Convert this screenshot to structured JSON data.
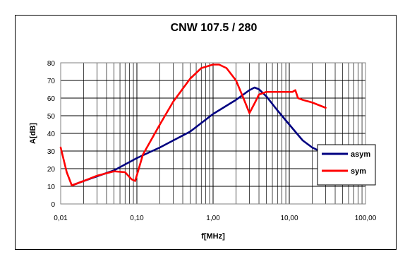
{
  "chart_data": {
    "type": "line",
    "title": "CNW 107.5 / 280",
    "xlabel": "f[MHz]",
    "ylabel": "A[dB]",
    "xscale": "log",
    "xlim": [
      0.01,
      100
    ],
    "ylim": [
      0,
      80
    ],
    "xticks": [
      "0,01",
      "0,10",
      "1,00",
      "10,00",
      "100,00"
    ],
    "yticks": [
      "0",
      "10",
      "20",
      "30",
      "40",
      "50",
      "60",
      "70",
      "80"
    ],
    "grid": true,
    "legend_position": "right",
    "series": [
      {
        "name": "asym",
        "color": "#000080",
        "x": [
          0.014,
          0.02,
          0.05,
          0.1,
          0.2,
          0.5,
          1.0,
          2.0,
          3.0,
          3.5,
          4.0,
          5.0,
          7.0,
          10.0,
          15.0,
          20.0,
          25.0
        ],
        "y": [
          10.5,
          13,
          19,
          26,
          32,
          41,
          51,
          59,
          64.5,
          66,
          65,
          61,
          53,
          45,
          36,
          32,
          30
        ]
      },
      {
        "name": "sym",
        "color": "#ff0000",
        "x": [
          0.01,
          0.012,
          0.014,
          0.02,
          0.03,
          0.05,
          0.07,
          0.085,
          0.095,
          0.12,
          0.2,
          0.3,
          0.5,
          0.7,
          1.0,
          1.2,
          1.5,
          2.0,
          2.5,
          3.0,
          3.5,
          4.0,
          5.0,
          7.0,
          10.0,
          11.0,
          12.0,
          13.0,
          15.0,
          20.0,
          30.0
        ],
        "y": [
          32,
          18,
          10.5,
          13,
          16,
          18.5,
          18,
          14,
          13,
          28,
          45,
          58,
          71,
          77,
          79,
          79,
          77,
          70,
          60,
          51.5,
          57,
          62,
          63.5,
          63.5,
          63.5,
          63.5,
          64.5,
          60,
          59,
          57.5,
          54.5
        ]
      }
    ]
  }
}
